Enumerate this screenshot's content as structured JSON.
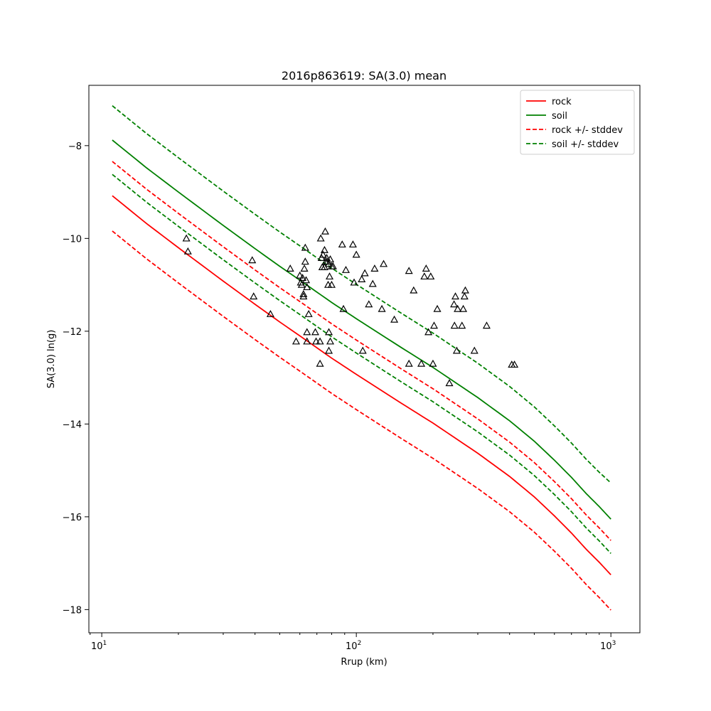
{
  "chart_data": {
    "type": "line",
    "title": "2016p863619: SA(3.0) mean",
    "xlabel": "Rrup (km)",
    "ylabel": "SA(3.0) ln(g)",
    "xscale": "log",
    "xlim": [
      8.9,
      1300
    ],
    "ylim": [
      -18.5,
      -6.7
    ],
    "x_ticks": [
      10,
      100,
      1000
    ],
    "x_tick_labels": [
      {
        "base": "10",
        "exp": "1"
      },
      {
        "base": "10",
        "exp": "2"
      },
      {
        "base": "10",
        "exp": "3"
      }
    ],
    "y_ticks": [
      -18,
      -16,
      -14,
      -12,
      -10,
      -8
    ],
    "grid": false,
    "legend_position": "top-right",
    "series": [
      {
        "name": "rock",
        "color": "#ff0000",
        "dash": "solid",
        "x": [
          11,
          15,
          20,
          30,
          40,
          50,
          60,
          80,
          100,
          150,
          200,
          300,
          400,
          500,
          600,
          700,
          800,
          900,
          1000
        ],
        "y": [
          -9.08,
          -9.68,
          -10.2,
          -10.92,
          -11.42,
          -11.8,
          -12.1,
          -12.58,
          -12.93,
          -13.55,
          -13.98,
          -14.63,
          -15.13,
          -15.57,
          -15.98,
          -16.35,
          -16.7,
          -16.98,
          -17.25
        ]
      },
      {
        "name": "soil",
        "color": "#008000",
        "dash": "solid",
        "x": [
          11,
          15,
          20,
          30,
          40,
          50,
          60,
          80,
          100,
          150,
          200,
          300,
          400,
          500,
          600,
          700,
          800,
          900,
          1000
        ],
        "y": [
          -7.88,
          -8.48,
          -9.0,
          -9.72,
          -10.22,
          -10.6,
          -10.9,
          -11.38,
          -11.73,
          -12.35,
          -12.78,
          -13.43,
          -13.93,
          -14.37,
          -14.78,
          -15.15,
          -15.5,
          -15.78,
          -16.05
        ]
      },
      {
        "name": "rock +/- stddev",
        "color": "#ff0000",
        "dash": "dashed",
        "x": [
          11,
          15,
          20,
          30,
          40,
          50,
          60,
          80,
          100,
          150,
          200,
          300,
          400,
          500,
          600,
          700,
          800,
          900,
          1000
        ],
        "y": [
          -8.34,
          -8.94,
          -9.46,
          -10.18,
          -10.68,
          -11.06,
          -11.36,
          -11.84,
          -12.19,
          -12.81,
          -13.24,
          -13.89,
          -14.39,
          -14.83,
          -15.24,
          -15.61,
          -15.96,
          -16.24,
          -16.51
        ]
      },
      {
        "name": "",
        "color": "#ff0000",
        "dash": "dashed",
        "x": [
          11,
          15,
          20,
          30,
          40,
          50,
          60,
          80,
          100,
          150,
          200,
          300,
          400,
          500,
          600,
          700,
          800,
          900,
          1000
        ],
        "y": [
          -9.84,
          -10.44,
          -10.96,
          -11.68,
          -12.18,
          -12.56,
          -12.86,
          -13.34,
          -13.69,
          -14.31,
          -14.74,
          -15.39,
          -15.89,
          -16.33,
          -16.74,
          -17.11,
          -17.46,
          -17.74,
          -18.01
        ]
      },
      {
        "name": "soil +/- stddev",
        "color": "#008000",
        "dash": "dashed",
        "x": [
          11,
          15,
          20,
          30,
          40,
          50,
          60,
          80,
          100,
          150,
          200,
          300,
          400,
          500,
          600,
          700,
          800,
          900,
          1000
        ],
        "y": [
          -7.14,
          -7.74,
          -8.26,
          -8.98,
          -9.48,
          -9.86,
          -10.16,
          -10.64,
          -10.99,
          -11.61,
          -12.04,
          -12.69,
          -13.19,
          -13.63,
          -14.04,
          -14.41,
          -14.76,
          -15.04,
          -15.27
        ]
      },
      {
        "name": "",
        "color": "#008000",
        "dash": "dashed",
        "x": [
          11,
          15,
          20,
          30,
          40,
          50,
          60,
          80,
          100,
          150,
          200,
          300,
          400,
          500,
          600,
          700,
          800,
          900,
          1000
        ],
        "y": [
          -8.62,
          -9.22,
          -9.74,
          -10.46,
          -10.96,
          -11.34,
          -11.64,
          -12.12,
          -12.47,
          -13.09,
          -13.52,
          -14.17,
          -14.67,
          -15.11,
          -15.52,
          -15.89,
          -16.24,
          -16.52,
          -16.79
        ]
      }
    ],
    "observations": {
      "marker": "triangle",
      "color": "#000000",
      "points": [
        [
          21.5,
          -10.0
        ],
        [
          21.8,
          -10.28
        ],
        [
          39,
          -10.47
        ],
        [
          39.5,
          -11.25
        ],
        [
          46,
          -11.63
        ],
        [
          55,
          -10.65
        ],
        [
          58,
          -12.22
        ],
        [
          60,
          -10.8
        ],
        [
          60.5,
          -10.95
        ],
        [
          61,
          -11.0
        ],
        [
          61.5,
          -10.85
        ],
        [
          62,
          -11.2
        ],
        [
          62,
          -11.25
        ],
        [
          62.5,
          -10.65
        ],
        [
          63,
          -10.2
        ],
        [
          63,
          -10.5
        ],
        [
          63.5,
          -10.9
        ],
        [
          64,
          -11.05
        ],
        [
          64,
          -12.02
        ],
        [
          64,
          -12.22
        ],
        [
          65,
          -11.63
        ],
        [
          69,
          -12.02
        ],
        [
          69.5,
          -12.22
        ],
        [
          72,
          -12.7
        ],
        [
          72,
          -12.22
        ],
        [
          72.5,
          -10.0
        ],
        [
          73,
          -10.42
        ],
        [
          73.5,
          -10.62
        ],
        [
          74,
          -10.35
        ],
        [
          75,
          -10.25
        ],
        [
          75,
          -10.62
        ],
        [
          75.5,
          -9.85
        ],
        [
          76,
          -10.5
        ],
        [
          76.5,
          -10.42
        ],
        [
          77,
          -10.5
        ],
        [
          77.5,
          -11.0
        ],
        [
          78,
          -10.55
        ],
        [
          78,
          -12.42
        ],
        [
          78,
          -12.02
        ],
        [
          78.5,
          -10.82
        ],
        [
          79,
          -12.22
        ],
        [
          79,
          -10.45
        ],
        [
          80,
          -11.0
        ],
        [
          80,
          -10.6
        ],
        [
          81,
          -10.6
        ],
        [
          88,
          -10.13
        ],
        [
          89,
          -11.52
        ],
        [
          91,
          -10.68
        ],
        [
          97,
          -10.13
        ],
        [
          98,
          -10.95
        ],
        [
          100,
          -10.35
        ],
        [
          105,
          -10.88
        ],
        [
          106,
          -12.42
        ],
        [
          108,
          -10.75
        ],
        [
          112,
          -11.42
        ],
        [
          116,
          -10.98
        ],
        [
          118,
          -10.65
        ],
        [
          126,
          -11.52
        ],
        [
          128,
          -10.55
        ],
        [
          141,
          -11.75
        ],
        [
          161,
          -10.7
        ],
        [
          161,
          -12.7
        ],
        [
          168,
          -11.12
        ],
        [
          180,
          -12.7
        ],
        [
          185,
          -10.82
        ],
        [
          188,
          -10.65
        ],
        [
          192,
          -12.02
        ],
        [
          196,
          -10.82
        ],
        [
          200,
          -12.7
        ],
        [
          202,
          -11.88
        ],
        [
          208,
          -11.52
        ],
        [
          232,
          -13.12
        ],
        [
          242,
          -11.42
        ],
        [
          243,
          -11.88
        ],
        [
          245,
          -11.25
        ],
        [
          248,
          -12.42
        ],
        [
          250,
          -11.52
        ],
        [
          260,
          -11.88
        ],
        [
          263,
          -11.52
        ],
        [
          266,
          -11.25
        ],
        [
          268,
          -11.12
        ],
        [
          291,
          -12.42
        ],
        [
          325,
          -11.88
        ],
        [
          408,
          -12.72
        ],
        [
          418,
          -12.72
        ]
      ]
    }
  }
}
